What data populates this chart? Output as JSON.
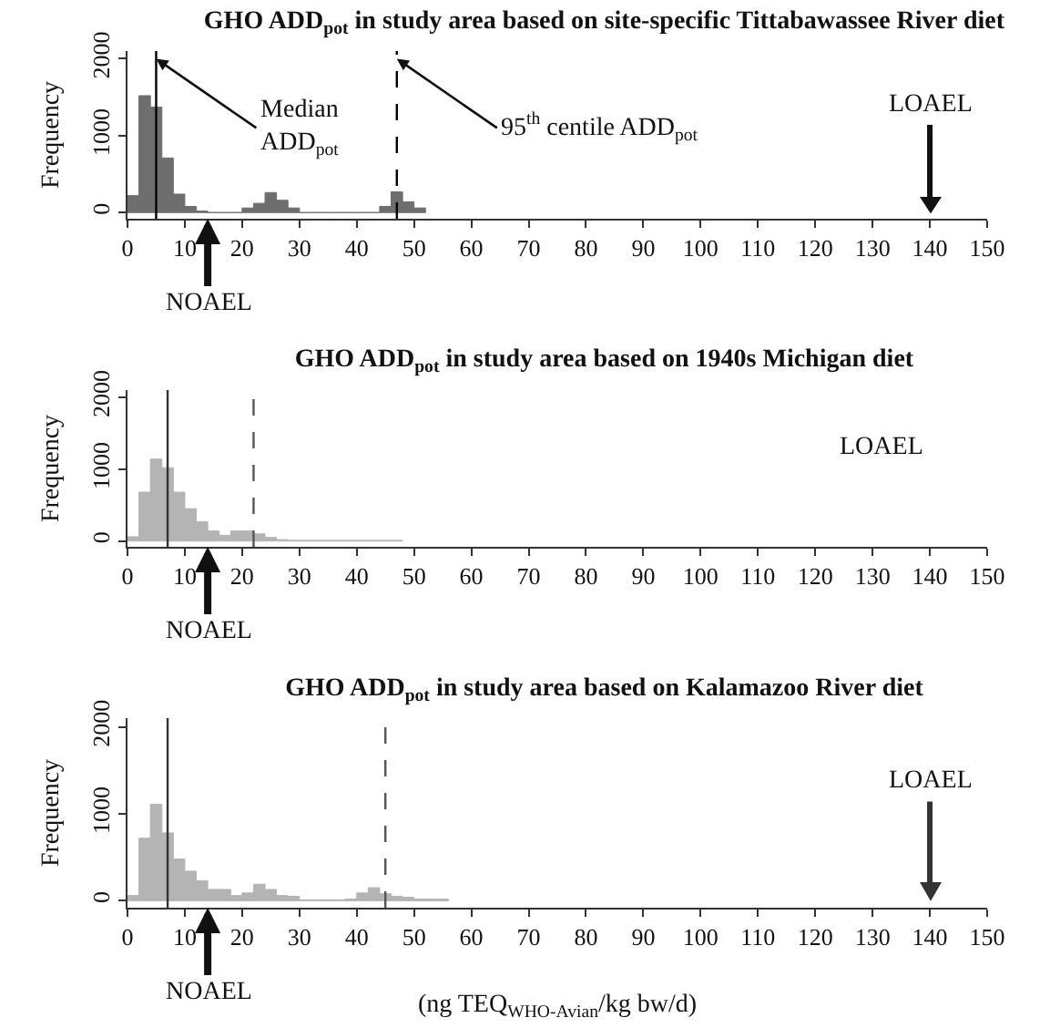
{
  "chart_data": [
    {
      "type": "histogram",
      "title": "GHO ADD$_{pot}$ in study area based on site-specific Tittabawassee River diet",
      "ylabel": "Frequency",
      "color": "#6e6e6e",
      "bins": [
        0,
        2,
        4,
        6,
        8,
        10,
        12,
        14,
        16,
        18,
        20,
        22,
        24,
        26,
        28,
        30,
        32,
        34,
        36,
        38,
        40,
        42,
        44,
        46,
        48,
        50,
        52
      ],
      "values": [
        220,
        1520,
        1370,
        710,
        240,
        80,
        20,
        0,
        0,
        0,
        60,
        120,
        260,
        160,
        60,
        0,
        0,
        0,
        0,
        0,
        0,
        0,
        80,
        270,
        140,
        60
      ],
      "xlim": [
        0,
        150
      ],
      "xticks": [
        0,
        10,
        20,
        30,
        40,
        50,
        60,
        70,
        80,
        90,
        100,
        110,
        120,
        130,
        140,
        150
      ],
      "ylim": [
        -80,
        2100
      ],
      "yticks": [
        0,
        1000,
        2000
      ],
      "ref_lines": [
        {
          "axis": "x",
          "value": 5,
          "label": null,
          "color": "#000000",
          "line_style": "solid"
        },
        {
          "axis": "x",
          "value": 47,
          "label": null,
          "color": "#000000",
          "line_style": "dashed"
        },
        {
          "axis": "x",
          "value": 140,
          "label": "LOAEL",
          "color": "#111111"
        }
      ],
      "annotations": [
        {
          "text": "Median\nADD$_{pot}$",
          "x": 5,
          "y": 2000
        },
        {
          "text": "95$^{th}$ centile ADD$_{pot}$",
          "x": 47,
          "y": 2000
        },
        {
          "text": "NOAEL",
          "x": 14,
          "y": -80
        }
      ]
    },
    {
      "type": "histogram",
      "title": "GHO ADD$_{pot}$ in study area based on 1940s Michigan diet",
      "ylabel": "Frequency",
      "color": "#b4b4b4",
      "bins": [
        0,
        2,
        4,
        6,
        8,
        10,
        12,
        14,
        16,
        18,
        20,
        22,
        24,
        26,
        28,
        30,
        32,
        34,
        36,
        38,
        40,
        42,
        44,
        46,
        48
      ],
      "values": [
        60,
        680,
        1140,
        1020,
        680,
        450,
        270,
        140,
        80,
        140,
        140,
        100,
        50,
        20,
        10,
        10,
        10,
        10,
        10,
        10,
        10,
        10,
        10,
        10
      ],
      "xlim": [
        0,
        150
      ],
      "xticks": [
        0,
        10,
        20,
        30,
        40,
        50,
        60,
        70,
        80,
        90,
        100,
        110,
        120,
        130,
        140,
        150
      ],
      "ylim": [
        -80,
        2100
      ],
      "yticks": [
        0,
        1000,
        2000
      ],
      "ref_lines": [
        {
          "axis": "x",
          "value": 7,
          "label": null,
          "color": "#333333",
          "line_style": "solid"
        },
        {
          "axis": "x",
          "value": 22,
          "label": null,
          "color": "#555555",
          "line_style": "dashed"
        }
      ],
      "annotations": [
        "LOAEL",
        {
          "text": "NOAEL",
          "x": 14,
          "y": -80
        }
      ]
    },
    {
      "type": "histogram",
      "title": "GHO ADD$_{pot}$ in study area based on Kalamazoo River diet",
      "ylabel": "Frequency",
      "xlabel": "(ng TEQ$_{WHO-Avian}$/kg bw/d)",
      "color": "#b4b4b4",
      "bins": [
        0,
        2,
        4,
        6,
        8,
        10,
        12,
        14,
        16,
        18,
        20,
        22,
        24,
        26,
        28,
        30,
        32,
        34,
        36,
        38,
        40,
        42,
        44,
        46,
        48,
        50,
        52,
        54,
        56
      ],
      "values": [
        60,
        720,
        1110,
        780,
        480,
        340,
        230,
        130,
        130,
        60,
        90,
        190,
        130,
        60,
        50,
        10,
        10,
        10,
        10,
        20,
        90,
        150,
        80,
        50,
        40,
        20,
        20,
        20
      ],
      "xlim": [
        0,
        150
      ],
      "xticks": [
        0,
        10,
        20,
        30,
        40,
        50,
        60,
        70,
        80,
        90,
        100,
        110,
        120,
        130,
        140,
        150
      ],
      "ylim": [
        -80,
        2100
      ],
      "yticks": [
        0,
        1000,
        2000
      ],
      "ref_lines": [
        {
          "axis": "x",
          "value": 7,
          "label": null,
          "color": "#333333",
          "line_style": "solid"
        },
        {
          "axis": "x",
          "value": 45,
          "label": null,
          "color": "#555555",
          "line_style": "dashed"
        },
        {
          "axis": "x",
          "value": 140,
          "label": "LOAEL",
          "color": "#333333"
        }
      ],
      "annotations": [
        {
          "text": "NOAEL",
          "x": 14,
          "y": -80
        }
      ]
    }
  ]
}
